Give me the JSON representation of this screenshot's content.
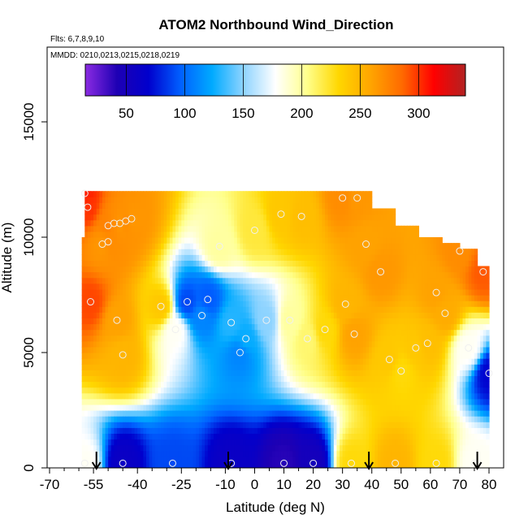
{
  "chart_data": {
    "type": "heatmap",
    "title": "ATOM2 Northbound Wind_Direction",
    "subtitle_flights": "Flts: 6,7,8,9,10",
    "subtitle_dates": "MMDD: 0210,0213,0215,0218,0219",
    "xlabel": "Latitude (deg N)",
    "ylabel": "Altitude (m)",
    "xlim": [
      -70,
      85
    ],
    "ylim": [
      0,
      17500
    ],
    "x_ticks": [
      -70,
      -55,
      -40,
      -25,
      -10,
      0,
      10,
      20,
      30,
      40,
      50,
      60,
      70,
      80
    ],
    "x_minor_ticks": [
      -65,
      -60,
      -50,
      -45,
      -35,
      -30,
      -20,
      -15,
      -5,
      5,
      15,
      25,
      35,
      45,
      55,
      65,
      75
    ],
    "y_ticks": [
      0,
      5000,
      10000,
      15000
    ],
    "colorbar": {
      "min": 15,
      "max": 340,
      "ticks": [
        50,
        100,
        150,
        200,
        250,
        300
      ],
      "colors": [
        "#8b2be2",
        "#1e00b4",
        "#0000cd",
        "#005fff",
        "#00aaff",
        "#8fd4ff",
        "#ffffff",
        "#ffff8c",
        "#ffd700",
        "#ffa500",
        "#ff6a00",
        "#ff0000",
        "#b22222"
      ]
    },
    "sounding_arrows_latitude": [
      -54,
      -9,
      39,
      76
    ],
    "observations": [
      {
        "lat": -58,
        "alt": 11900,
        "dir": 305
      },
      {
        "lat": -57,
        "alt": 11300,
        "dir": 300
      },
      {
        "lat": -50,
        "alt": 10500,
        "dir": 275
      },
      {
        "lat": -48,
        "alt": 10600,
        "dir": 270
      },
      {
        "lat": -46,
        "alt": 10600,
        "dir": 265
      },
      {
        "lat": -44,
        "alt": 10700,
        "dir": 270
      },
      {
        "lat": -42,
        "alt": 10800,
        "dir": 265
      },
      {
        "lat": -52,
        "alt": 9700,
        "dir": 265
      },
      {
        "lat": -50,
        "alt": 9800,
        "dir": 270
      },
      {
        "lat": -56,
        "alt": 7200,
        "dir": 295
      },
      {
        "lat": -47,
        "alt": 6400,
        "dir": 260
      },
      {
        "lat": -45,
        "alt": 4900,
        "dir": 250
      },
      {
        "lat": -32,
        "alt": 7000,
        "dir": 240
      },
      {
        "lat": -27,
        "alt": 6000,
        "dir": 180
      },
      {
        "lat": -23,
        "alt": 7200,
        "dir": 90
      },
      {
        "lat": -16,
        "alt": 7300,
        "dir": 95
      },
      {
        "lat": -18,
        "alt": 6600,
        "dir": 110
      },
      {
        "lat": -12,
        "alt": 9600,
        "dir": 200
      },
      {
        "lat": -8,
        "alt": 6300,
        "dir": 130
      },
      {
        "lat": -3,
        "alt": 5600,
        "dir": 125
      },
      {
        "lat": -5,
        "alt": 5000,
        "dir": 110
      },
      {
        "lat": 4,
        "alt": 6400,
        "dir": 150
      },
      {
        "lat": 0,
        "alt": 10300,
        "dir": 220
      },
      {
        "lat": 9,
        "alt": 11000,
        "dir": 240
      },
      {
        "lat": 16,
        "alt": 10900,
        "dir": 245
      },
      {
        "lat": 12,
        "alt": 6400,
        "dir": 200
      },
      {
        "lat": 18,
        "alt": 5600,
        "dir": 210
      },
      {
        "lat": 24,
        "alt": 6000,
        "dir": 230
      },
      {
        "lat": 31,
        "alt": 7100,
        "dir": 250
      },
      {
        "lat": 34,
        "alt": 5800,
        "dir": 260
      },
      {
        "lat": 38,
        "alt": 9700,
        "dir": 260
      },
      {
        "lat": 43,
        "alt": 8500,
        "dir": 265
      },
      {
        "lat": 46,
        "alt": 4700,
        "dir": 240
      },
      {
        "lat": 50,
        "alt": 4200,
        "dir": 230
      },
      {
        "lat": 55,
        "alt": 5200,
        "dir": 240
      },
      {
        "lat": 59,
        "alt": 5400,
        "dir": 245
      },
      {
        "lat": 62,
        "alt": 7600,
        "dir": 260
      },
      {
        "lat": 65,
        "alt": 6700,
        "dir": 255
      },
      {
        "lat": 70,
        "alt": 9400,
        "dir": 270
      },
      {
        "lat": 73,
        "alt": 5200,
        "dir": 180
      },
      {
        "lat": 78,
        "alt": 8500,
        "dir": 290
      },
      {
        "lat": 80,
        "alt": 4100,
        "dir": 70
      },
      {
        "lat": -58,
        "alt": 200,
        "dir": 180
      },
      {
        "lat": -45,
        "alt": 200,
        "dir": 60
      },
      {
        "lat": -28,
        "alt": 200,
        "dir": 90
      },
      {
        "lat": -8,
        "alt": 200,
        "dir": 60
      },
      {
        "lat": 10,
        "alt": 200,
        "dir": 40
      },
      {
        "lat": 20,
        "alt": 200,
        "dir": 50
      },
      {
        "lat": 33,
        "alt": 200,
        "dir": 230
      },
      {
        "lat": 48,
        "alt": 200,
        "dir": 250
      },
      {
        "lat": 62,
        "alt": 200,
        "dir": 230
      },
      {
        "lat": 75,
        "alt": 200,
        "dir": 180
      },
      {
        "lat": 35,
        "alt": 11700,
        "dir": 265
      },
      {
        "lat": 30,
        "alt": 11700,
        "dir": 270
      }
    ]
  }
}
